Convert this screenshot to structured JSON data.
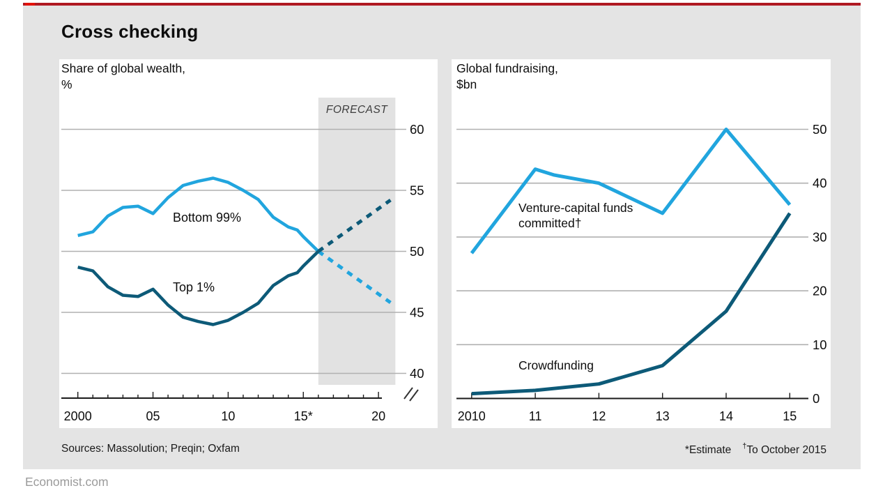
{
  "page": {
    "title": "Cross checking",
    "source_line": "Sources: Massolution; Preqin; Oxfam",
    "footnote_estimate": "*Estimate",
    "footnote_dagger": "†",
    "footnote_dagger_text": "To October 2015",
    "site": "Economist.com"
  },
  "colors": {
    "red_tab": "#e3120b",
    "red_rule": "#b01922",
    "background_gray": "#e4e4e4",
    "panel_white": "#ffffff",
    "forecast_band": "#e2e2e2",
    "gridline": "#b0b0b0",
    "axis": "#1a1a1a",
    "light_blue": "#21a5de",
    "dark_blue": "#0d5a78",
    "text_dark": "#0d0d0d",
    "text_gray": "#9b9b9b",
    "forecast_text": "#3d3d3d"
  },
  "chart_data": [
    {
      "id": "wealth",
      "type": "line",
      "title": "Share of global wealth,",
      "unit": "%",
      "ylim": [
        40,
        60
      ],
      "y_ticks": [
        40,
        45,
        50,
        55,
        60
      ],
      "axis_break": true,
      "grid": true,
      "x_major": {
        "years": [
          2000,
          2005,
          2010,
          2015,
          2020
        ],
        "labels": [
          "2000",
          "05",
          "10",
          "15*",
          "20"
        ]
      },
      "x_minor_every_year": true,
      "xlim": [
        2000,
        2020.3
      ],
      "forecast": {
        "label": "FORECAST",
        "from_year": 2016,
        "to_year": 2020.8
      },
      "series": [
        {
          "name": "Bottom 99%",
          "color": "light_blue",
          "x": [
            2000,
            2001,
            2002,
            2003,
            2004,
            2005,
            2006,
            2007,
            2008,
            2009,
            2010,
            2011,
            2012,
            2013,
            2014,
            2014.6,
            2015,
            2016
          ],
          "values": [
            51.3,
            51.6,
            52.9,
            53.6,
            53.7,
            53.1,
            54.4,
            55.4,
            55.75,
            56.0,
            55.65,
            55.0,
            54.25,
            52.8,
            52.0,
            51.75,
            51.2,
            50.0
          ],
          "forecast_x": [
            2016,
            2020.8
          ],
          "forecast_values": [
            50.0,
            45.8
          ]
        },
        {
          "name": "Top 1%",
          "color": "dark_blue",
          "x": [
            2000,
            2001,
            2002,
            2003,
            2004,
            2005,
            2006,
            2007,
            2008,
            2009,
            2010,
            2011,
            2012,
            2013,
            2014,
            2014.6,
            2015,
            2016
          ],
          "values": [
            48.7,
            48.4,
            47.1,
            46.4,
            46.3,
            46.9,
            45.6,
            44.6,
            44.25,
            44.0,
            44.35,
            45.0,
            45.75,
            47.2,
            48.0,
            48.25,
            48.8,
            50.0
          ],
          "forecast_x": [
            2016,
            2020.8
          ],
          "forecast_values": [
            50.0,
            54.2
          ]
        }
      ]
    },
    {
      "id": "fundraising",
      "type": "line",
      "title": "Global fundraising,",
      "unit": "$bn",
      "ylim": [
        0,
        50
      ],
      "y_ticks": [
        0,
        10,
        20,
        30,
        40,
        50
      ],
      "grid": true,
      "x_major": {
        "years": [
          2010,
          2011,
          2012,
          2013,
          2014,
          2015
        ],
        "labels": [
          "2010",
          "11",
          "12",
          "13",
          "14",
          "15"
        ]
      },
      "series": [
        {
          "name": "Venture-capital funds committed†",
          "color": "light_blue",
          "x": [
            2010,
            2011,
            2011.3,
            2012,
            2013,
            2014,
            2015
          ],
          "values": [
            27,
            42.6,
            41.5,
            40,
            34.4,
            50,
            36
          ]
        },
        {
          "name": "Crowdfunding",
          "color": "dark_blue",
          "x": [
            2010,
            2011,
            2012,
            2013,
            2014,
            2015
          ],
          "values": [
            0.9,
            1.5,
            2.7,
            6.1,
            16.2,
            34.4
          ]
        }
      ]
    }
  ]
}
